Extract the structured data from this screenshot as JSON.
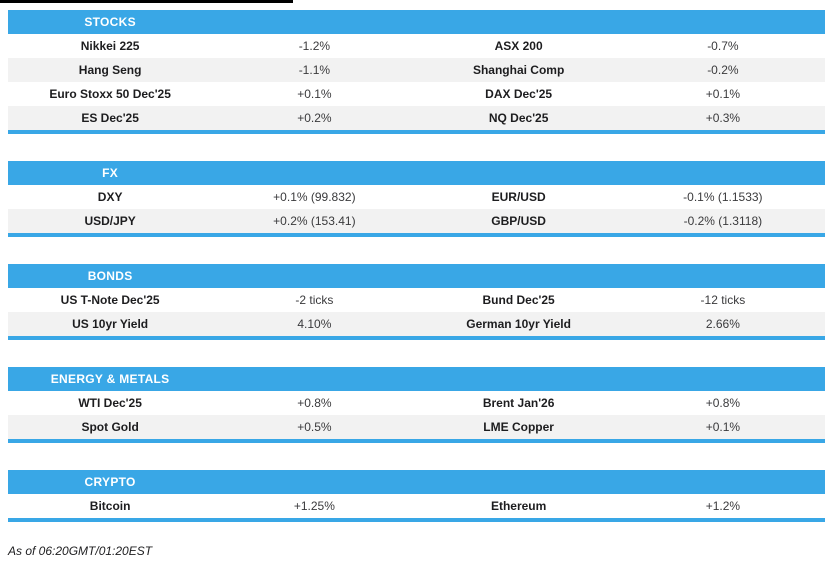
{
  "colors": {
    "accent": "#39a7e6",
    "row_alt": "#f2f2f2",
    "header_text": "#ffffff"
  },
  "sections": [
    {
      "title": "STOCKS",
      "rows": [
        [
          "Nikkei 225",
          "-1.2%",
          "ASX 200",
          "-0.7%"
        ],
        [
          "Hang Seng",
          "-1.1%",
          "Shanghai Comp",
          "-0.2%"
        ],
        [
          "Euro Stoxx 50 Dec'25",
          "+0.1%",
          "DAX Dec'25",
          "+0.1%"
        ],
        [
          "ES Dec'25",
          "+0.2%",
          "NQ Dec'25",
          "+0.3%"
        ]
      ]
    },
    {
      "title": "FX",
      "rows": [
        [
          "DXY",
          "+0.1% (99.832)",
          "EUR/USD",
          "-0.1% (1.1533)"
        ],
        [
          "USD/JPY",
          "+0.2% (153.41)",
          "GBP/USD",
          "-0.2% (1.3118)"
        ]
      ]
    },
    {
      "title": "BONDS",
      "rows": [
        [
          "US T-Note Dec'25",
          "-2 ticks",
          "Bund Dec'25",
          "-12 ticks"
        ],
        [
          "US 10yr Yield",
          "4.10%",
          "German 10yr Yield",
          "2.66%"
        ]
      ]
    },
    {
      "title": "ENERGY & METALS",
      "rows": [
        [
          "WTI Dec'25",
          "+0.8%",
          "Brent Jan'26",
          "+0.8%"
        ],
        [
          "Spot Gold",
          "+0.5%",
          "LME Copper",
          "+0.1%"
        ]
      ]
    },
    {
      "title": "CRYPTO",
      "rows": [
        [
          "Bitcoin",
          "+1.25%",
          "Ethereum",
          "+1.2%"
        ]
      ]
    }
  ],
  "footer": {
    "as_of": "As of 06:20GMT/01:20EST"
  }
}
